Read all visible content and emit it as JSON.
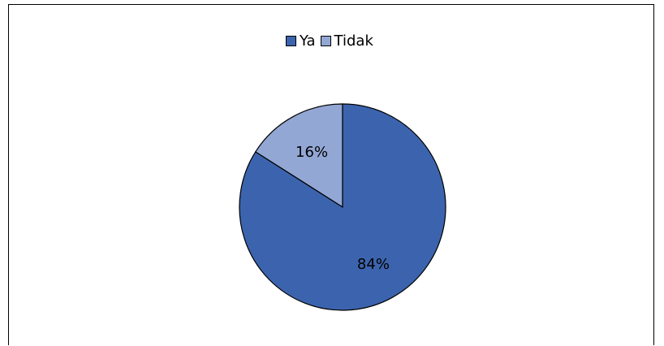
{
  "chart_data": {
    "type": "pie",
    "categories": [
      "Ya",
      "Tidak"
    ],
    "values": [
      84,
      16
    ],
    "labels": [
      "84%",
      "16%"
    ],
    "colors": [
      "#3c64ae",
      "#93a7d5"
    ],
    "legend_position": "top",
    "start_direction": "top",
    "slice_order": "counterclockwise"
  }
}
